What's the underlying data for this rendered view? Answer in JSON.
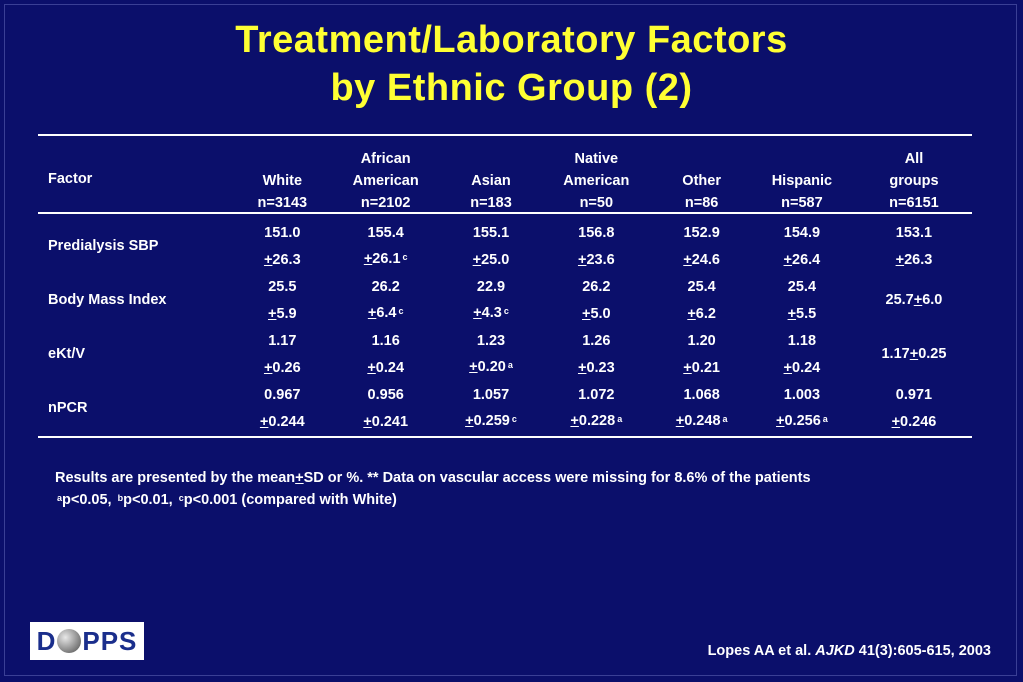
{
  "title": [
    "Treatment/Laboratory Factors",
    "by Ethnic Group (2)"
  ],
  "table": {
    "header": {
      "factor": "Factor",
      "columns": [
        {
          "lines": [
            "White",
            "n=3143"
          ]
        },
        {
          "lines": [
            "African",
            "American",
            "n=2102"
          ]
        },
        {
          "lines": [
            "Asian",
            "n=183"
          ]
        },
        {
          "lines": [
            "Native",
            "American",
            "n=50"
          ]
        },
        {
          "lines": [
            "Other",
            "n=86"
          ]
        },
        {
          "lines": [
            "Hispanic",
            "n=587"
          ]
        },
        {
          "lines": [
            "All",
            "groups",
            "n=6151"
          ]
        }
      ]
    },
    "rows": [
      {
        "factor": "Predialysis SBP",
        "means": [
          "151.0",
          "155.4",
          "155.1",
          "156.8",
          "152.9",
          "154.9",
          "153.1"
        ],
        "sds": [
          {
            "v": "26.3",
            "sup": ""
          },
          {
            "v": "26.1",
            "sup": "c"
          },
          {
            "v": "25.0",
            "sup": ""
          },
          {
            "v": "23.6",
            "sup": ""
          },
          {
            "v": "24.6",
            "sup": ""
          },
          {
            "v": "26.4",
            "sup": ""
          },
          {
            "v": "26.3",
            "sup": ""
          }
        ],
        "all_combined": null
      },
      {
        "factor": "Body Mass Index",
        "means": [
          "25.5",
          "26.2",
          "22.9",
          "26.2",
          "25.4",
          "25.4"
        ],
        "sds": [
          {
            "v": "5.9",
            "sup": ""
          },
          {
            "v": "6.4",
            "sup": "c"
          },
          {
            "v": "4.3",
            "sup": "c"
          },
          {
            "v": "5.0",
            "sup": ""
          },
          {
            "v": "6.2",
            "sup": ""
          },
          {
            "v": "5.5",
            "sup": ""
          }
        ],
        "all_combined": {
          "mean": "25.7",
          "sd": "6.0"
        }
      },
      {
        "factor": "eKt/V",
        "means": [
          "1.17",
          "1.16",
          "1.23",
          "1.26",
          "1.20",
          "1.18"
        ],
        "sds": [
          {
            "v": "0.26",
            "sup": ""
          },
          {
            "v": "0.24",
            "sup": ""
          },
          {
            "v": "0.20",
            "sup": "a"
          },
          {
            "v": "0.23",
            "sup": ""
          },
          {
            "v": "0.21",
            "sup": ""
          },
          {
            "v": "0.24",
            "sup": ""
          }
        ],
        "all_combined": {
          "mean": "1.17",
          "sd": "0.25"
        }
      },
      {
        "factor": "nPCR",
        "means": [
          "0.967",
          "0.956",
          "1.057",
          "1.072",
          "1.068",
          "1.003",
          "0.971"
        ],
        "sds": [
          {
            "v": "0.244",
            "sup": ""
          },
          {
            "v": "0.241",
            "sup": ""
          },
          {
            "v": "0.259",
            "sup": "c"
          },
          {
            "v": "0.228",
            "sup": "a"
          },
          {
            "v": "0.248",
            "sup": "a"
          },
          {
            "v": "0.256",
            "sup": "a"
          },
          {
            "v": "0.246",
            "sup": ""
          }
        ],
        "all_combined": null
      }
    ]
  },
  "notes": {
    "line1_pre": "Results are presented by the mean",
    "line1_pm": "+",
    "line1_post": "SD or %. ** Data on vascular access were missing for 8.6% of the patients",
    "sig": [
      {
        "sup": "a",
        "text": "p<0.05, "
      },
      {
        "sup": "b",
        "text": "p<0.01, "
      },
      {
        "sup": "c",
        "text": "p<0.001 (compared with White)"
      }
    ]
  },
  "citation": {
    "authors": "Lopes AA et al. ",
    "journal": "AJKD",
    "ref": " 41(3):605-615, 2003"
  },
  "logo": {
    "left": "D",
    "right": "PPS"
  },
  "colors": {
    "background": "#0b0f6b",
    "title": "#ffff33",
    "text": "#ffffff"
  }
}
